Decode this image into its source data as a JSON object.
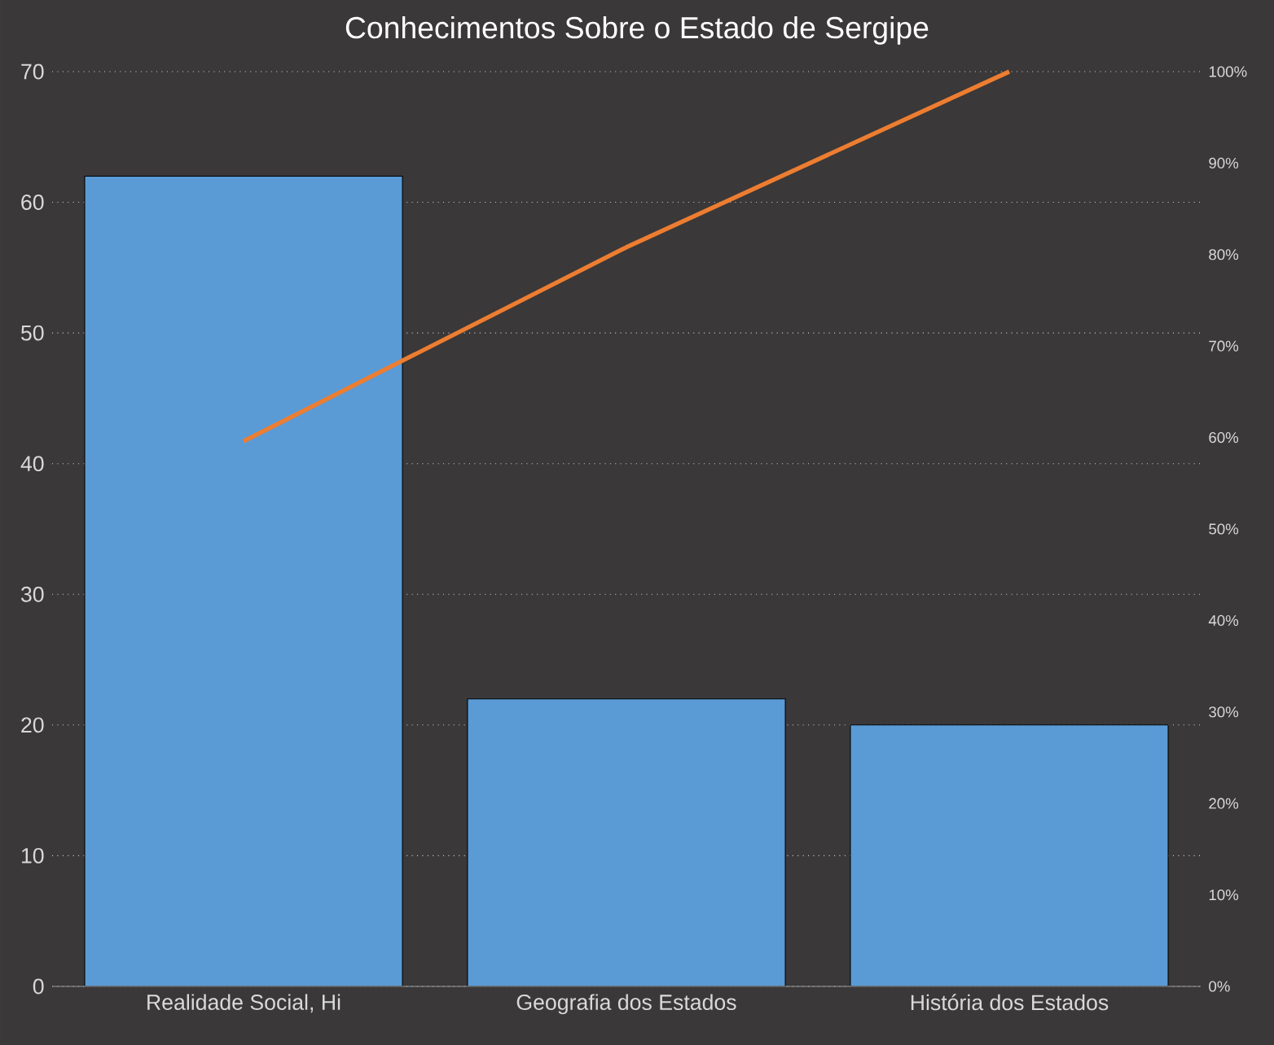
{
  "chart_data": {
    "type": "bar",
    "title": "Conhecimentos Sobre o Estado de Sergipe",
    "categories": [
      "Realidade Social, Hi",
      "Geografia dos Estados",
      "História dos Estados"
    ],
    "series": [
      {
        "color": "#5b9bd5",
        "values": [
          62,
          22,
          20
        ]
      },
      {
        "type": "line",
        "color": "#ed7d31",
        "axis": "y2",
        "values": [
          59.6,
          80.8,
          100
        ]
      }
    ],
    "ylim": [
      0,
      70
    ],
    "yticks": [
      0,
      10,
      20,
      30,
      40,
      50,
      60,
      70
    ],
    "y2lim": [
      0,
      100
    ],
    "y2ticks": [
      {
        "value": 0,
        "label": "0%"
      },
      {
        "value": 10,
        "label": "10%"
      },
      {
        "value": 20,
        "label": "20%"
      },
      {
        "value": 30,
        "label": "30%"
      },
      {
        "value": 40,
        "label": "40%"
      },
      {
        "value": 50,
        "label": "50%"
      },
      {
        "value": 60,
        "label": "60%"
      },
      {
        "value": 70,
        "label": "70%"
      },
      {
        "value": 80,
        "label": "80%"
      },
      {
        "value": 90,
        "label": "90%"
      },
      {
        "value": 100,
        "label": "100%"
      }
    ],
    "grid": "y"
  }
}
